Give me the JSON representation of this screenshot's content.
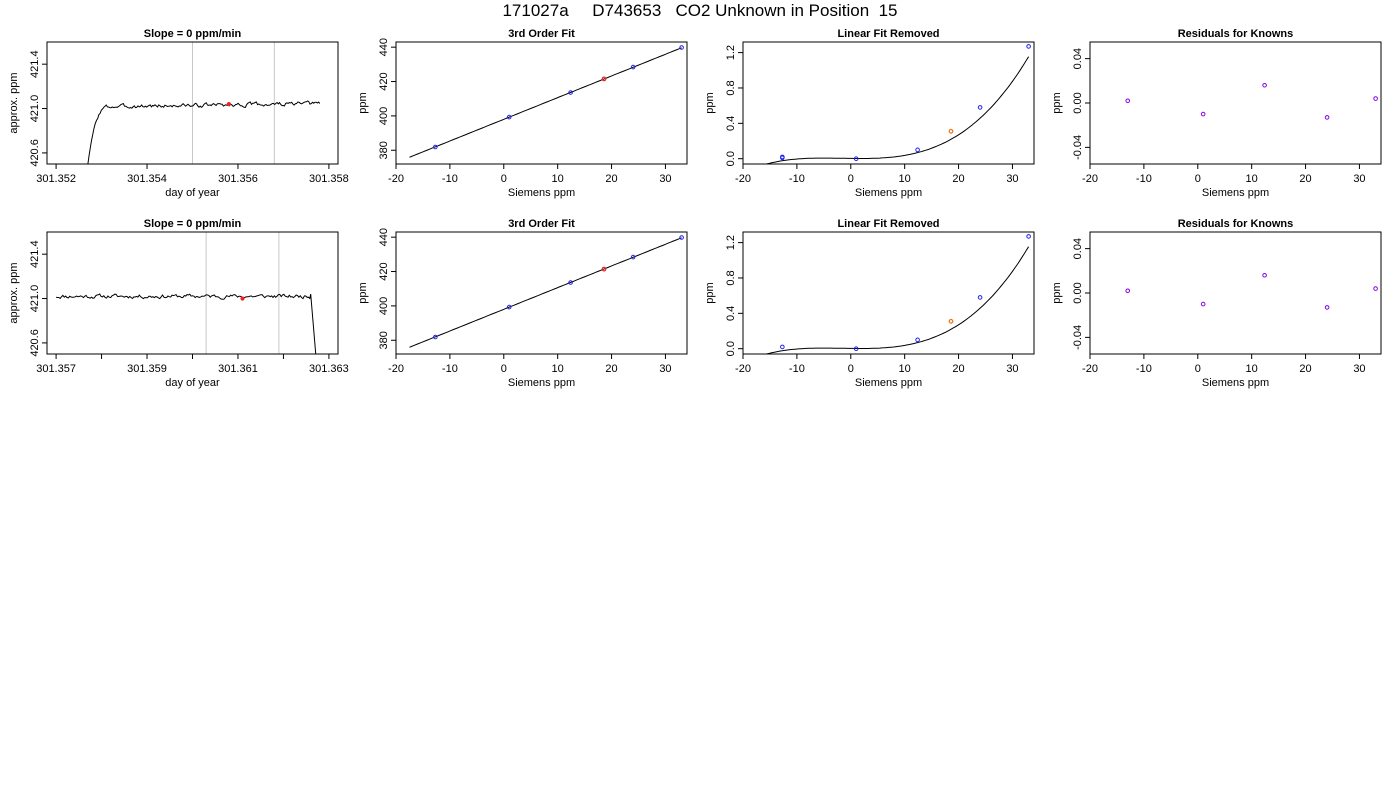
{
  "title": "171027a     D743653   CO2 Unknown in Position  15",
  "colors": {
    "trace": "#000000",
    "vline": "#c8c8c8",
    "known": "#2222ee",
    "unknown_fit": "#ee2222",
    "unknown_lin": "#ee7711",
    "residual": "#8800ee"
  },
  "chart_data": [
    {
      "type": "line",
      "row": 0,
      "col": 0,
      "title": "Slope =  0  ppm/min",
      "xlabel": "day of year",
      "ylabel": "approx. ppm",
      "xlim": [
        301.3518,
        301.3582
      ],
      "ylim": [
        420.5,
        421.6
      ],
      "xticks": [
        301.352,
        301.354,
        301.356,
        301.358
      ],
      "xtick_labels": [
        "301.352",
        "301.354",
        "301.356",
        "301.358"
      ],
      "yticks": [
        420.6,
        421.0,
        421.4
      ],
      "ytick_labels": [
        "420.6",
        "421.0",
        "421.4"
      ],
      "vlines": [
        301.355,
        301.3568
      ],
      "trace": {
        "x_start": 301.3527,
        "x_end": 301.3578,
        "rise_end": 301.3532,
        "start_value": 420.5,
        "noise_amplitude": 0.015,
        "mean": 421.03,
        "drift": 0.03,
        "seed": 3,
        "end_drop": false
      },
      "marker": {
        "x": 301.3558,
        "y": 421.04
      }
    },
    {
      "type": "scatter",
      "row": 0,
      "col": 1,
      "title": "3rd Order Fit",
      "xlabel": "Siemens ppm",
      "ylabel": "ppm",
      "xlim": [
        -20,
        34
      ],
      "ylim": [
        372,
        443
      ],
      "xticks": [
        -20,
        -10,
        0,
        10,
        20,
        30
      ],
      "xtick_labels": [
        "-20",
        "-10",
        "0",
        "10",
        "20",
        "30"
      ],
      "yticks": [
        380,
        400,
        420,
        440
      ],
      "ytick_labels": [
        "380",
        "400",
        "420",
        "440"
      ],
      "curve": {
        "x_range": [
          -17.5,
          33
        ],
        "a": 398.0,
        "b": 1.262,
        "c": 0.0,
        "d": 0.0
      },
      "knowns": {
        "x": [
          -12.7,
          1.0,
          12.4,
          24.0,
          33.0
        ],
        "y": [
          381.9,
          399.3,
          413.6,
          428.4,
          439.8
        ]
      },
      "unknown": {
        "x": 18.6,
        "y": 421.5
      }
    },
    {
      "type": "scatter",
      "row": 0,
      "col": 2,
      "title": "Linear Fit Removed",
      "xlabel": "Siemens ppm",
      "ylabel": "ppm",
      "xlim": [
        -20,
        34
      ],
      "ylim": [
        -0.06,
        1.32
      ],
      "xticks": [
        -20,
        -10,
        0,
        10,
        20,
        30
      ],
      "xtick_labels": [
        "-20",
        "-10",
        "0",
        "10",
        "20",
        "30"
      ],
      "yticks": [
        0.0,
        0.4,
        0.8,
        1.2
      ],
      "ytick_labels": [
        "0.0",
        "0.4",
        "0.8",
        "1.2"
      ],
      "curve": {
        "x_range": [
          -18,
          33
        ],
        "a": 0.003,
        "b": -0.00082,
        "c": 0.000138,
        "d": 2.86e-05
      },
      "knowns": {
        "x": [
          -12.7,
          -12.7,
          1.0,
          12.4,
          24.0,
          33.0
        ],
        "y": [
          0.02,
          0.01,
          0.0,
          0.1,
          0.58,
          1.27
        ]
      },
      "unknown": {
        "x": 18.6,
        "y": 0.31
      }
    },
    {
      "type": "scatter",
      "row": 0,
      "col": 3,
      "title": "Residuals for Knowns",
      "xlabel": "Siemens ppm",
      "ylabel": "ppm",
      "xlim": [
        -20,
        34
      ],
      "ylim": [
        -0.055,
        0.055
      ],
      "xticks": [
        -20,
        -10,
        0,
        10,
        20,
        30
      ],
      "xtick_labels": [
        "-20",
        "-10",
        "0",
        "10",
        "20",
        "30"
      ],
      "yticks": [
        -0.04,
        0.0,
        0.04
      ],
      "ytick_labels": [
        "-0.04",
        "0.00",
        "0.04"
      ],
      "knowns": {
        "x": [
          -13.0,
          1.0,
          12.4,
          24.0,
          33.0
        ],
        "y": [
          0.002,
          -0.01,
          0.016,
          -0.013,
          0.004
        ]
      }
    },
    {
      "type": "line",
      "row": 1,
      "col": 0,
      "title": "Slope =  0  ppm/min",
      "xlabel": "day of year",
      "ylabel": "approx. ppm",
      "xlim": [
        301.3568,
        301.3632
      ],
      "ylim": [
        420.5,
        421.6
      ],
      "xticks": [
        301.357,
        301.358,
        301.359,
        301.36,
        301.361,
        301.362,
        301.363
      ],
      "xtick_labels": [
        "301.357",
        "",
        "301.359",
        "",
        "301.361",
        "",
        "301.363"
      ],
      "yticks": [
        420.6,
        421.0,
        421.4
      ],
      "ytick_labels": [
        "420.6",
        "421.0",
        "421.4"
      ],
      "vlines": [
        301.3603,
        301.3619
      ],
      "trace": {
        "x_start": 301.357,
        "x_end": 301.3627,
        "rise_end": null,
        "start_value": 421.01,
        "noise_amplitude": 0.015,
        "mean": 421.02,
        "drift": 0.0,
        "seed": 11,
        "end_drop": true,
        "drop_start": 301.3626,
        "drop_end": 301.36272
      },
      "marker": {
        "x": 301.3611,
        "y": 421.0
      }
    },
    {
      "type": "scatter",
      "row": 1,
      "col": 1,
      "title": "3rd Order Fit",
      "xlabel": "Siemens ppm",
      "ylabel": "ppm",
      "xlim": [
        -20,
        34
      ],
      "ylim": [
        372,
        443
      ],
      "xticks": [
        -20,
        -10,
        0,
        10,
        20,
        30
      ],
      "xtick_labels": [
        "-20",
        "-10",
        "0",
        "10",
        "20",
        "30"
      ],
      "yticks": [
        380,
        400,
        420,
        440
      ],
      "ytick_labels": [
        "380",
        "400",
        "420",
        "440"
      ],
      "curve": {
        "x_range": [
          -17.5,
          33
        ],
        "a": 398.0,
        "b": 1.262,
        "c": 0.0,
        "d": 0.0
      },
      "knowns": {
        "x": [
          -12.7,
          1.0,
          12.4,
          24.0,
          33.0
        ],
        "y": [
          381.9,
          399.3,
          413.6,
          428.4,
          439.8
        ]
      },
      "unknown": {
        "x": 18.6,
        "y": 421.4
      }
    },
    {
      "type": "scatter",
      "row": 1,
      "col": 2,
      "title": "Linear Fit Removed",
      "xlabel": "Siemens ppm",
      "ylabel": "ppm",
      "xlim": [
        -20,
        34
      ],
      "ylim": [
        -0.06,
        1.32
      ],
      "xticks": [
        -20,
        -10,
        0,
        10,
        20,
        30
      ],
      "xtick_labels": [
        "-20",
        "-10",
        "0",
        "10",
        "20",
        "30"
      ],
      "yticks": [
        0.0,
        0.4,
        0.8,
        1.2
      ],
      "ytick_labels": [
        "0.0",
        "0.4",
        "0.8",
        "1.2"
      ],
      "curve": {
        "x_range": [
          -18,
          33
        ],
        "a": 0.003,
        "b": -0.00082,
        "c": 0.000138,
        "d": 2.86e-05
      },
      "knowns": {
        "x": [
          -12.7,
          1.0,
          12.4,
          24.0,
          33.0
        ],
        "y": [
          0.02,
          0.0,
          0.1,
          0.58,
          1.27
        ]
      },
      "unknown": {
        "x": 18.6,
        "y": 0.31
      }
    },
    {
      "type": "scatter",
      "row": 1,
      "col": 3,
      "title": "Residuals for Knowns",
      "xlabel": "Siemens ppm",
      "ylabel": "ppm",
      "xlim": [
        -20,
        34
      ],
      "ylim": [
        -0.055,
        0.055
      ],
      "xticks": [
        -20,
        -10,
        0,
        10,
        20,
        30
      ],
      "xtick_labels": [
        "-20",
        "-10",
        "0",
        "10",
        "20",
        "30"
      ],
      "yticks": [
        -0.04,
        0.0,
        0.04
      ],
      "ytick_labels": [
        "-0.04",
        "0.00",
        "0.04"
      ],
      "knowns": {
        "x": [
          -13.0,
          1.0,
          12.4,
          24.0,
          33.0
        ],
        "y": [
          0.002,
          -0.01,
          0.016,
          -0.013,
          0.004
        ]
      }
    }
  ]
}
